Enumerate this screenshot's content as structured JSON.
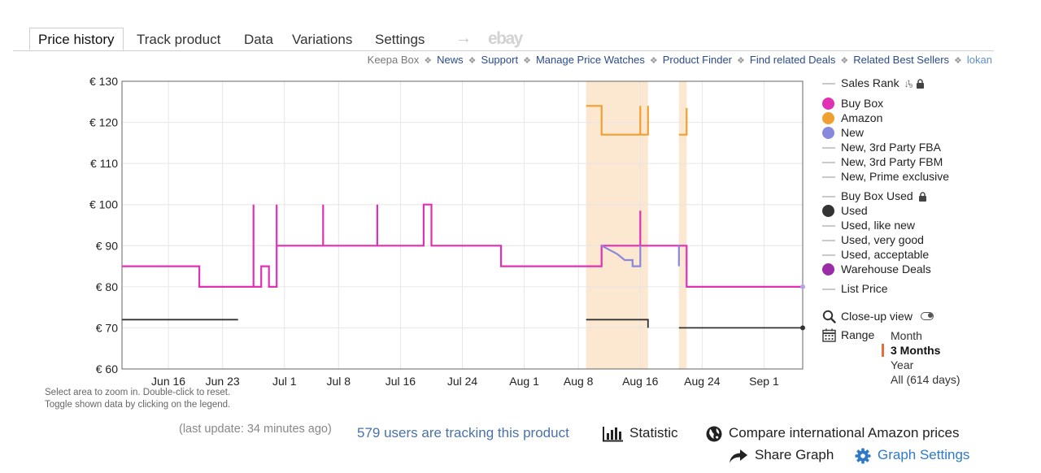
{
  "tabs": {
    "price_history": "Price history",
    "track_product": "Track product",
    "data": "Data",
    "variations": "Variations",
    "settings": "Settings",
    "arrow_icon": "→",
    "ebay": "ebay"
  },
  "links": {
    "keepa_box": "Keepa Box",
    "news": "News",
    "support": "Support",
    "manage_price_watches": "Manage Price Watches",
    "product_finder": "Product Finder",
    "find_related_deals": "Find related Deals",
    "related_best_sellers": "Related Best Sellers",
    "user": "lokan",
    "separator": "❖"
  },
  "hint": {
    "line1": "Select area to zoom in. Double-click to reset.",
    "line2": "Toggle shown data by clicking on the legend."
  },
  "legend": {
    "sales_rank": "Sales Rank",
    "buy_box": "Buy Box",
    "amazon": "Amazon",
    "new": "New",
    "new_3p_fba": "New, 3rd Party FBA",
    "new_3p_fbm": "New, 3rd Party FBM",
    "new_prime": "New, Prime exclusive",
    "buy_box_used": "Buy Box Used",
    "used": "Used",
    "used_like_new": "Used, like new",
    "used_very_good": "Used, very good",
    "used_acceptable": "Used, acceptable",
    "warehouse_deals": "Warehouse Deals",
    "list_price": "List Price",
    "colors": {
      "buy_box": "#e030b4",
      "amazon": "#f0a030",
      "new": "#8888dd",
      "used": "#333333",
      "warehouse_deals": "#9b2ba6",
      "inactive": "#c9c9c9"
    }
  },
  "controls": {
    "closeup_view": "Close-up view",
    "range": "Range",
    "range_options": [
      "Month",
      "3 Months",
      "Year",
      "All (614 days)"
    ],
    "range_selected": "3 Months"
  },
  "footer": {
    "last_update": "(last update: 34 minutes ago)",
    "tracking": "579 users are tracking this product",
    "statistic": "Statistic",
    "compare": "Compare international Amazon prices",
    "share": "Share Graph",
    "graph_settings": "Graph Settings"
  },
  "chart_data": {
    "type": "line",
    "y_unit": "€",
    "ylim": [
      60,
      130
    ],
    "y_ticks": [
      130,
      120,
      110,
      100,
      90,
      80,
      70,
      60
    ],
    "y_tick_labels": [
      "€ 130",
      "€ 120",
      "€ 110",
      "€ 100",
      "€ 90",
      "€ 80",
      "€ 70",
      "€ 60"
    ],
    "xlim": [
      "2024-06-10",
      "2024-09-06"
    ],
    "x_ticks": [
      "2024-06-16",
      "2024-06-23",
      "2024-07-01",
      "2024-07-08",
      "2024-07-16",
      "2024-07-24",
      "2024-08-01",
      "2024-08-08",
      "2024-08-16",
      "2024-08-24",
      "2024-09-01"
    ],
    "x_tick_labels": [
      "Jun 16",
      "Jun 23",
      "Jul 1",
      "Jul 8",
      "Jul 16",
      "Jul 24",
      "Aug 1",
      "Aug 8",
      "Aug 16",
      "Aug 24",
      "Sep 1"
    ],
    "grid": true,
    "series": [
      {
        "name": "Buy Box",
        "color": "#e030b4",
        "points": [
          [
            "2024-06-10",
            85
          ],
          [
            "2024-06-20",
            85
          ],
          [
            "2024-06-20",
            80
          ],
          [
            "2024-06-27",
            80
          ],
          [
            "2024-06-27",
            100
          ],
          [
            "2024-06-27",
            80
          ],
          [
            "2024-06-28",
            80
          ],
          [
            "2024-06-28",
            85
          ],
          [
            "2024-06-29",
            85
          ],
          [
            "2024-06-29",
            80
          ],
          [
            "2024-06-30",
            80
          ],
          [
            "2024-06-30",
            100
          ],
          [
            "2024-06-30",
            90
          ],
          [
            "2024-07-06",
            90
          ],
          [
            "2024-07-06",
            100
          ],
          [
            "2024-07-06",
            90
          ],
          [
            "2024-07-13",
            90
          ],
          [
            "2024-07-13",
            100
          ],
          [
            "2024-07-13",
            90
          ],
          [
            "2024-07-19",
            90
          ],
          [
            "2024-07-19",
            100
          ],
          [
            "2024-07-20",
            100
          ],
          [
            "2024-07-20",
            90
          ],
          [
            "2024-07-20",
            100
          ],
          [
            "2024-07-20",
            90
          ],
          [
            "2024-07-29",
            90
          ],
          [
            "2024-07-29",
            85
          ],
          [
            "2024-08-11",
            85
          ],
          [
            "2024-08-11",
            90
          ],
          [
            "2024-08-16",
            90
          ],
          [
            "2024-08-16",
            98.5
          ],
          [
            "2024-08-16",
            90
          ],
          [
            "2024-08-22",
            90
          ],
          [
            "2024-08-22",
            80
          ],
          [
            "2024-09-06",
            80
          ]
        ]
      },
      {
        "name": "Amazon",
        "color": "#f0a030",
        "points": [
          [
            "2024-08-09",
            124
          ],
          [
            "2024-08-11",
            124
          ],
          [
            "2024-08-11",
            117
          ],
          [
            "2024-08-16",
            117
          ],
          [
            "2024-08-16",
            124
          ],
          [
            "2024-08-16",
            117
          ],
          [
            "2024-08-17",
            117
          ],
          [
            "2024-08-17",
            124
          ],
          [
            "2024-08-17",
            117
          ],
          [
            "2024-08-17",
            117
          ],
          [
            null,
            null
          ],
          [
            "2024-08-21",
            117
          ],
          [
            "2024-08-22",
            117
          ],
          [
            "2024-08-22",
            123.5
          ]
        ]
      },
      {
        "name": "New",
        "color": "#8888dd",
        "points": [
          [
            "2024-08-11",
            90
          ],
          [
            "2024-08-12",
            89
          ],
          [
            "2024-08-13",
            88
          ],
          [
            "2024-08-14",
            86.5
          ],
          [
            "2024-08-15",
            86.5
          ],
          [
            "2024-08-15",
            85
          ],
          [
            "2024-08-16",
            85
          ],
          [
            "2024-08-16",
            90
          ],
          [
            null,
            null
          ],
          [
            "2024-08-21",
            90
          ],
          [
            "2024-08-21",
            85
          ]
        ]
      },
      {
        "name": "Used",
        "color": "#333333",
        "points": [
          [
            "2024-06-10",
            72
          ],
          [
            "2024-06-25",
            72
          ],
          [
            null,
            null
          ],
          [
            "2024-06-28",
            72
          ],
          [
            "2024-06-28",
            72
          ],
          [
            null,
            null
          ],
          [
            "2024-08-09",
            72
          ],
          [
            "2024-08-17",
            72
          ],
          [
            "2024-08-17",
            70
          ],
          [
            null,
            null
          ],
          [
            "2024-08-21",
            70
          ],
          [
            "2024-09-06",
            70
          ]
        ]
      }
    ]
  }
}
